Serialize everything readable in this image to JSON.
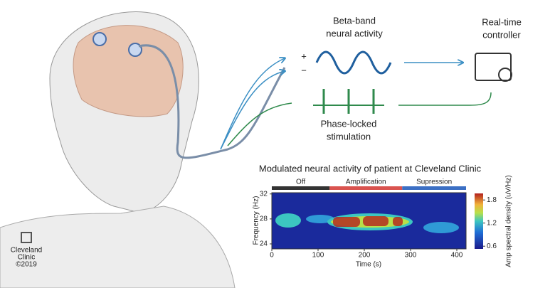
{
  "diagram": {
    "beta": {
      "lines": [
        "Beta-band",
        "neural activity"
      ],
      "plus": "+",
      "minus": "−"
    },
    "controller": {
      "lines": [
        "Real-time",
        "controller"
      ]
    },
    "stimulation": {
      "lines": [
        "Phase-locked",
        "stimulation"
      ]
    },
    "logo": {
      "lines": [
        "Cleveland",
        "Clinic",
        "©2019"
      ]
    }
  },
  "spectrogram": {
    "title": "Modulated neural activity of patient at Cleveland Clinic",
    "x_label": "Time (s)",
    "y_label": "Frequency (Hz)",
    "colorbar_label": "Amp spectral density (uV/Hz)",
    "xlim": [
      0,
      420
    ],
    "xticks": [
      0,
      100,
      200,
      300,
      400
    ],
    "ylim": [
      23.2,
      32.2
    ],
    "yticks": [
      24,
      28,
      32
    ],
    "clim": [
      0.53,
      1.97
    ],
    "cticks": [
      0.6,
      1.2,
      1.8
    ],
    "phases": [
      {
        "name": "Off",
        "start": 0,
        "end": 125,
        "color": "#333333"
      },
      {
        "name": "Amplification",
        "start": 125,
        "end": 282,
        "color": "#d9534f"
      },
      {
        "name": "Supression",
        "start": 282,
        "end": 420,
        "color": "#3b6fc4"
      }
    ]
  }
}
